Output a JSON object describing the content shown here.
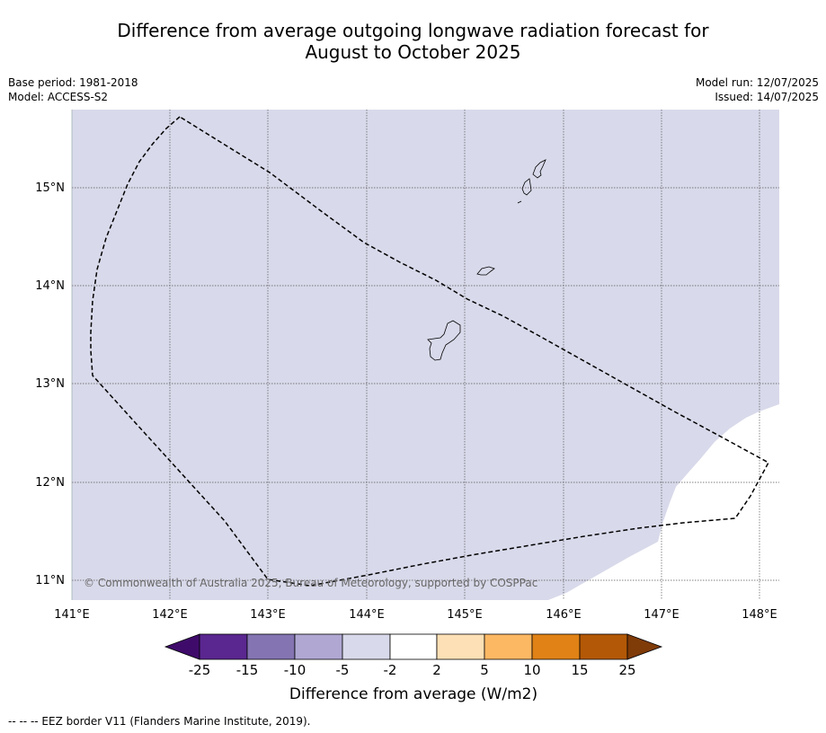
{
  "title_line1": "Difference from average outgoing longwave radiation forecast for",
  "title_line2": "August to October 2025",
  "base_period": "Base period: 1981-2018",
  "model": "Model: ACCESS-S2",
  "model_run": "Model run: 12/07/2025",
  "issued": "Issued: 14/07/2025",
  "copyright": "© Commonwealth of Australia 2025, Bureau of Meteorology, supported by COSPPac",
  "footer": "--  --  -- EEZ border V11 (Flanders Marine Institute, 2019).",
  "map": {
    "lon_ticks": [
      "141°E",
      "142°E",
      "143°E",
      "144°E",
      "145°E",
      "146°E",
      "147°E",
      "148°E"
    ],
    "lat_ticks": [
      "15°N",
      "14°N",
      "13°N",
      "12°N",
      "11°N"
    ],
    "fill_color": "#d8d9ea",
    "border_color": "#000000"
  },
  "colorbar": {
    "label": "Difference from average (W/m2)",
    "tick_labels": [
      "-25",
      "-15",
      "-10",
      "-5",
      "-2",
      "2",
      "5",
      "10",
      "15",
      "25"
    ],
    "colors": [
      "#3f0b6b",
      "#5a2690",
      "#8474b2",
      "#b0a8d3",
      "#d8d9ea",
      "#ffffff",
      "#fde0b5",
      "#fdb863",
      "#e08216",
      "#b35806",
      "#7f3b08"
    ]
  }
}
